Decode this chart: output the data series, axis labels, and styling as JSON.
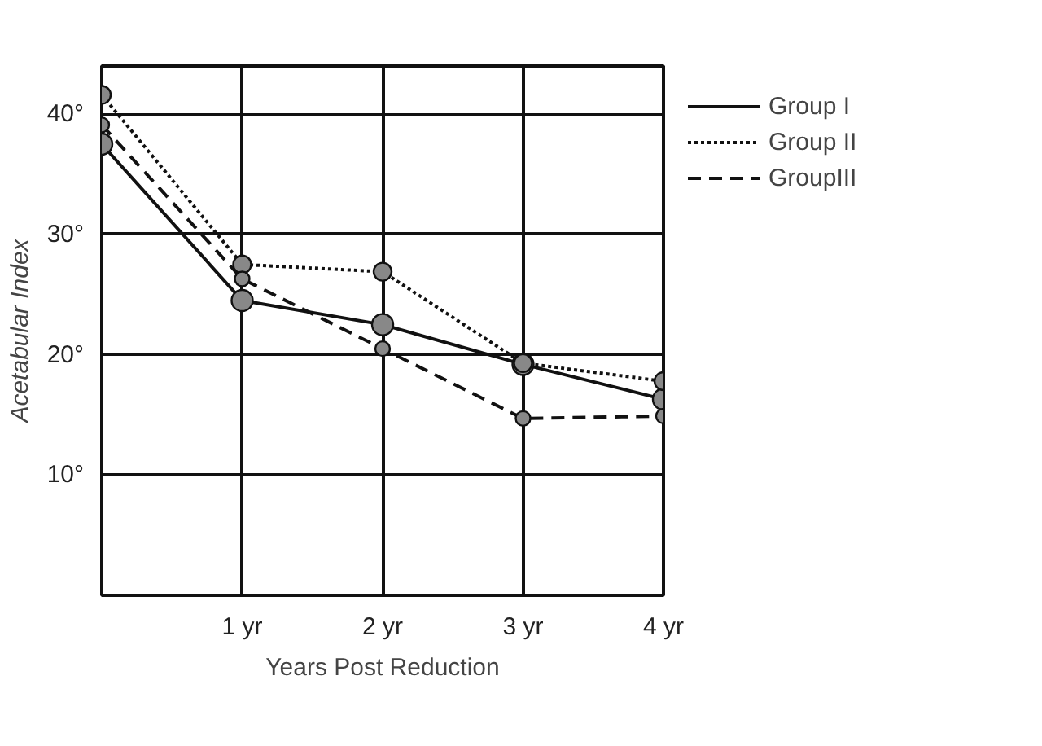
{
  "chart_data": {
    "type": "line",
    "xlabel": "Years Post Reduction",
    "ylabel": "Acetabular Index",
    "x": [
      0,
      1,
      2,
      3,
      4
    ],
    "xlim": [
      0,
      4
    ],
    "xticks": [
      {
        "value": 1,
        "label": "1 yr"
      },
      {
        "value": 2,
        "label": "2 yr"
      },
      {
        "value": 3,
        "label": "3 yr"
      },
      {
        "value": 4,
        "label": "4 yr"
      }
    ],
    "ylim": [
      0,
      44
    ],
    "yticks": [
      {
        "value": 10,
        "label": "10°"
      },
      {
        "value": 20,
        "label": "20°"
      },
      {
        "value": 30,
        "label": "30°"
      },
      {
        "value": 40,
        "label": "40°"
      }
    ],
    "grid": true,
    "legend": "top right",
    "marker": "circle",
    "series": [
      {
        "name": "Group I",
        "color": "#111111",
        "line_style": "solid",
        "values": [
          37.5,
          24.5,
          22.5,
          19.2,
          16.3
        ]
      },
      {
        "name": "Group II",
        "color": "#111111",
        "line_style": "dotted",
        "values": [
          41.6,
          27.5,
          26.9,
          19.3,
          17.8
        ]
      },
      {
        "name": "GroupIII",
        "color": "#111111",
        "line_style": "dashed",
        "values": [
          39.1,
          26.3,
          20.5,
          14.7,
          14.9
        ]
      }
    ]
  }
}
